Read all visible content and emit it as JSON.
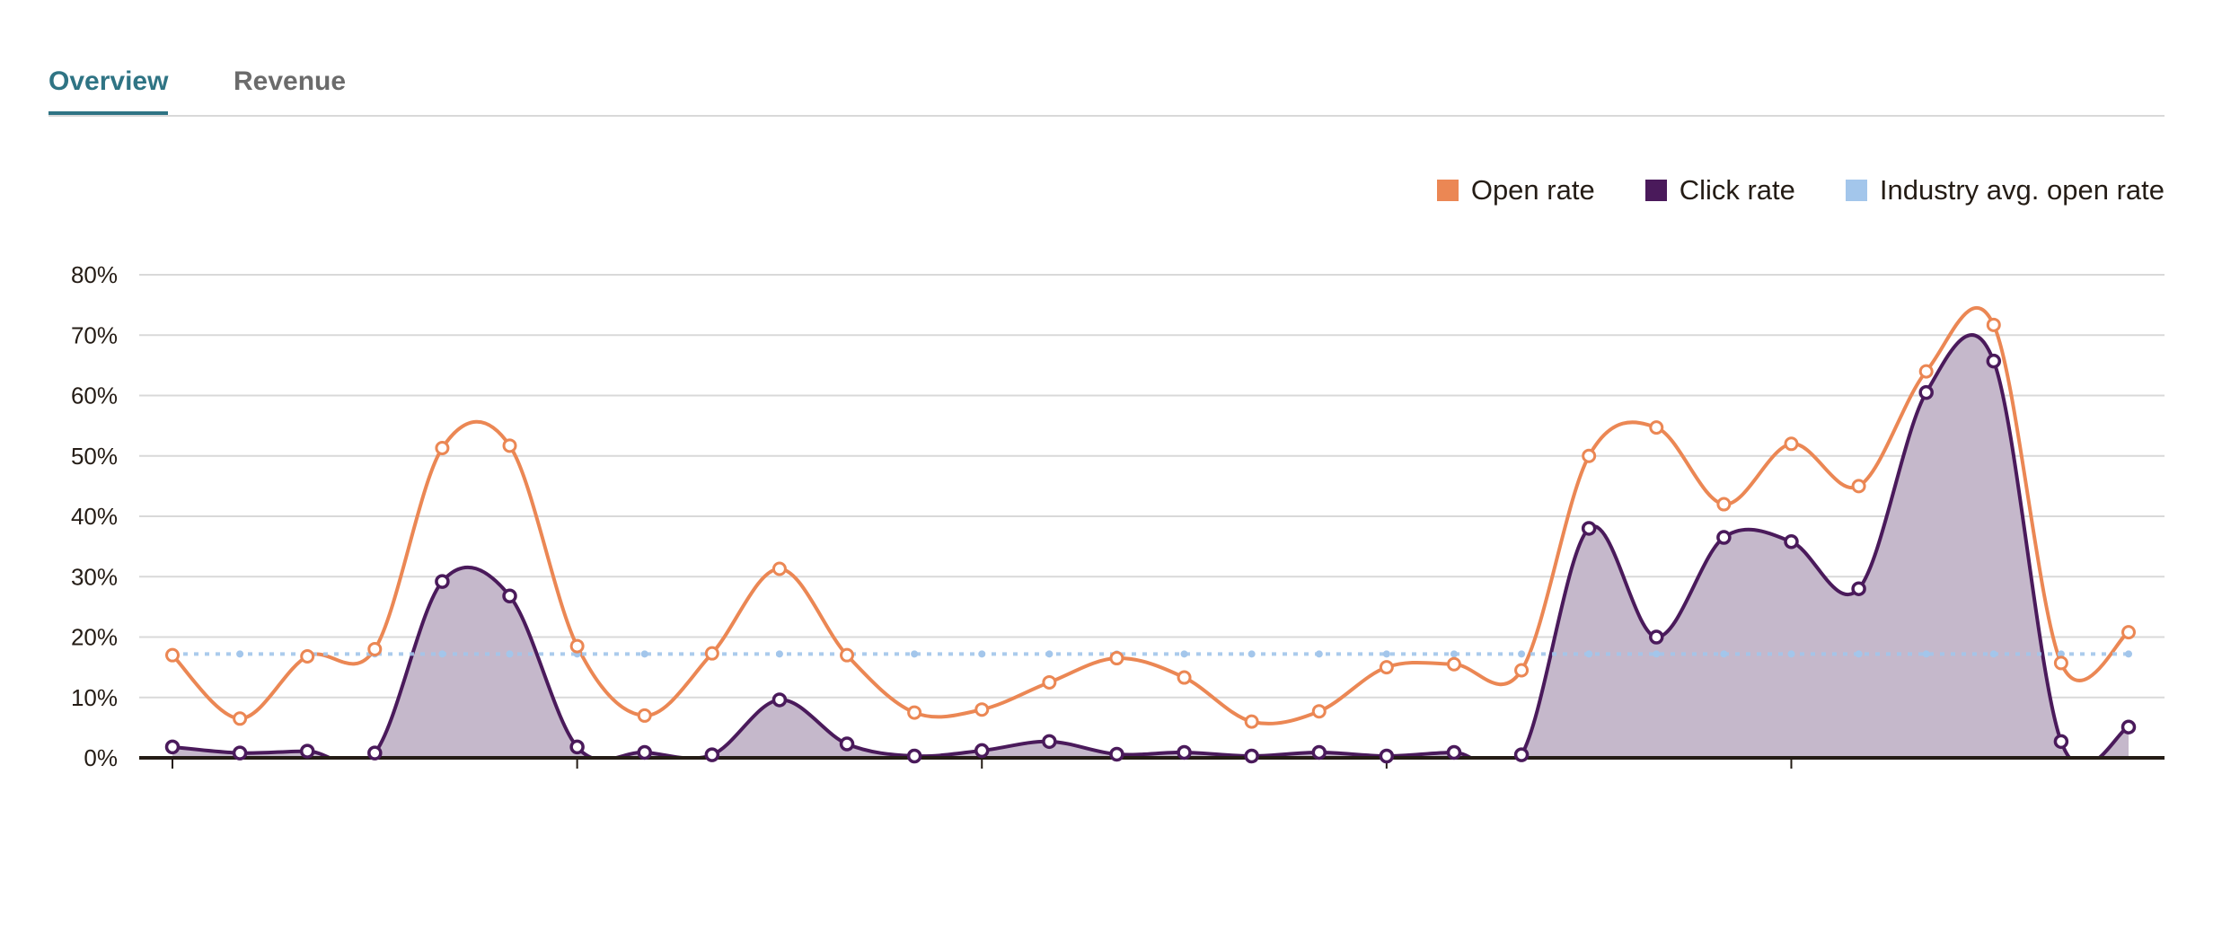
{
  "tabs": [
    {
      "label": "Overview",
      "active": true
    },
    {
      "label": "Revenue",
      "active": false
    }
  ],
  "chart_data": {
    "type": "line",
    "title": "",
    "xlabel": "",
    "ylabel": "",
    "ylim": [
      0,
      80
    ],
    "yticks": [
      "0%",
      "10%",
      "20%",
      "30%",
      "40%",
      "50%",
      "60%",
      "70%",
      "80%"
    ],
    "grid": true,
    "legend_position": "top-right",
    "x": [
      1,
      2,
      3,
      4,
      5,
      6,
      7,
      8,
      9,
      10,
      11,
      12,
      13,
      14,
      15,
      16,
      17,
      18,
      19,
      20,
      21,
      22,
      23,
      24,
      25,
      26,
      27,
      28,
      29,
      30
    ],
    "series": [
      {
        "name": "Open rate",
        "color": "#eb8754",
        "style": "line",
        "values": [
          17,
          6.5,
          16.8,
          18,
          51.3,
          51.7,
          18.5,
          7,
          17.3,
          31.3,
          17,
          7.5,
          8,
          12.5,
          16.5,
          13.3,
          6,
          7.7,
          15,
          15.5,
          14.5,
          50,
          54.7,
          42,
          52,
          45,
          64,
          71.7,
          15.7,
          20.8
        ]
      },
      {
        "name": "Click rate",
        "color": "#4a1a5b",
        "style": "area",
        "fill": "#c5b8cb",
        "values": [
          1.8,
          0.8,
          1.1,
          0.8,
          29.2,
          26.8,
          1.8,
          0.9,
          0.5,
          9.6,
          2.3,
          0.3,
          1.2,
          2.7,
          0.6,
          0.9,
          0.3,
          0.9,
          0.3,
          0.9,
          0.5,
          38,
          20,
          36.5,
          35.8,
          28,
          60.5,
          65.7,
          2.7,
          5.1
        ]
      },
      {
        "name": "Industry avg. open rate",
        "color": "#a3c6eb",
        "style": "dotted",
        "values": [
          17.2,
          17.2,
          17.2,
          17.2,
          17.2,
          17.2,
          17.2,
          17.2,
          17.2,
          17.2,
          17.2,
          17.2,
          17.2,
          17.2,
          17.2,
          17.2,
          17.2,
          17.2,
          17.2,
          17.2,
          17.2,
          17.2,
          17.2,
          17.2,
          17.2,
          17.2,
          17.2,
          17.2,
          17.2,
          17.2
        ]
      }
    ],
    "x_major_tick_every": 6
  }
}
